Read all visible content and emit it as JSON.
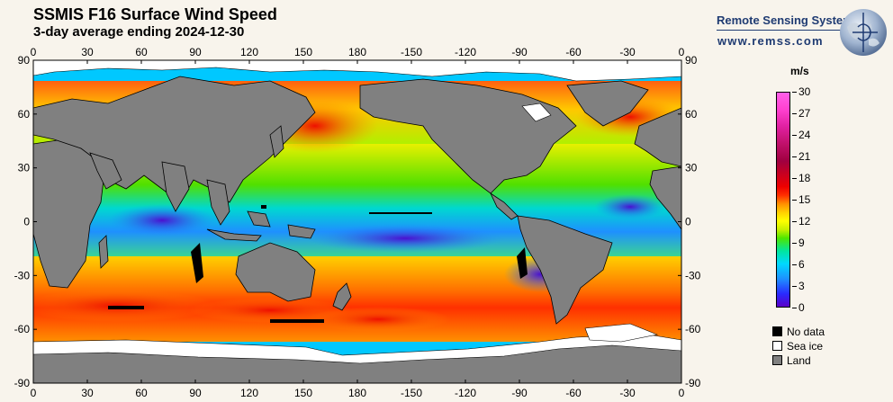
{
  "header": {
    "title": "SSMIS F16 Surface Wind Speed",
    "subtitle": "3-day average ending 2024-12-30"
  },
  "branding": {
    "name": "Remote Sensing Systems",
    "url": "www.remss.com"
  },
  "map": {
    "top_axis_labels": [
      "0",
      "30",
      "60",
      "90",
      "120",
      "150",
      "180",
      "-150",
      "-120",
      "-90",
      "-60",
      "-30",
      "0"
    ],
    "bottom_axis_labels": [
      "0",
      "30",
      "60",
      "90",
      "120",
      "150",
      "180",
      "-150",
      "-120",
      "-90",
      "-60",
      "-30",
      "0"
    ],
    "left_axis_labels": [
      "90",
      "60",
      "30",
      "0",
      "-30",
      "-60",
      "-90"
    ],
    "right_axis_labels": [
      "90",
      "60",
      "30",
      "0",
      "-30",
      "-60",
      "-90"
    ],
    "land_color": "#808080",
    "ice_color": "#ffffff",
    "nodata_color": "#000000"
  },
  "colorbar": {
    "unit": "m/s",
    "labels": [
      "30",
      "27",
      "24",
      "21",
      "18",
      "15",
      "12",
      "9",
      "6",
      "3",
      "0"
    ],
    "min": 0,
    "max": 30
  },
  "legend": [
    {
      "label": "No data",
      "color": "#000000"
    },
    {
      "label": "Sea ice",
      "color": "#ffffff"
    },
    {
      "label": "Land",
      "color": "#808080"
    }
  ]
}
